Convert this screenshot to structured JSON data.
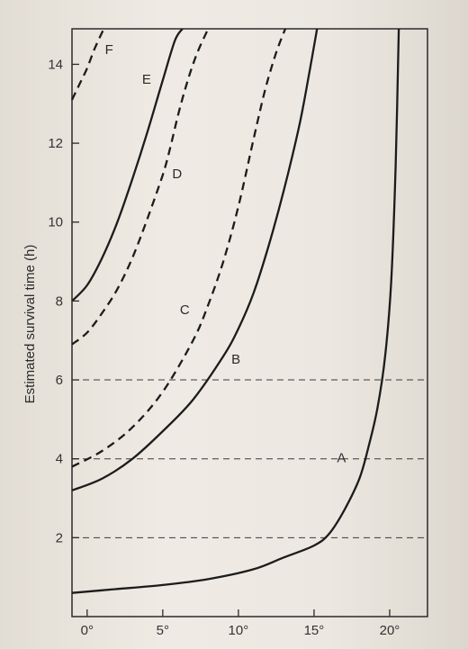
{
  "chart_data": {
    "type": "line",
    "title": "",
    "xlabel": "",
    "ylabel": "Estimated survival time (h)",
    "xlim": [
      -1,
      22.5
    ],
    "ylim": [
      0,
      14.9
    ],
    "x_ticks": [
      {
        "value": 0,
        "label": "0°"
      },
      {
        "value": 5,
        "label": "5°"
      },
      {
        "value": 10,
        "label": "10°"
      },
      {
        "value": 15,
        "label": "15°"
      },
      {
        "value": 20,
        "label": "20°"
      }
    ],
    "y_ticks": [
      {
        "value": 2,
        "label": "2"
      },
      {
        "value": 4,
        "label": "4"
      },
      {
        "value": 6,
        "label": "6"
      },
      {
        "value": 8,
        "label": "8"
      },
      {
        "value": 10,
        "label": "10"
      },
      {
        "value": 12,
        "label": "12"
      },
      {
        "value": 14,
        "label": "14"
      }
    ],
    "reference_lines": [
      2,
      4,
      6
    ],
    "series": [
      {
        "name": "A",
        "style": "solid",
        "x": [
          -1,
          2,
          5,
          8,
          11,
          13,
          15,
          16,
          17,
          18,
          18.6,
          19.2,
          19.7,
          20.1,
          20.4,
          20.6
        ],
        "y": [
          0.6,
          0.7,
          0.8,
          0.95,
          1.2,
          1.5,
          1.8,
          2.1,
          2.7,
          3.5,
          4.3,
          5.3,
          6.6,
          8.5,
          11.5,
          14.9
        ]
      },
      {
        "name": "B",
        "style": "solid",
        "x": [
          -1,
          1,
          3,
          5,
          7,
          9,
          10,
          11,
          12,
          13,
          14,
          14.6,
          15.2
        ],
        "y": [
          3.2,
          3.5,
          4.0,
          4.7,
          5.5,
          6.6,
          7.3,
          8.2,
          9.4,
          10.8,
          12.4,
          13.6,
          14.9
        ]
      },
      {
        "name": "C",
        "style": "dashed",
        "x": [
          -1,
          1,
          3,
          5,
          7,
          8,
          9,
          10,
          11,
          11.8,
          12.5,
          13.1
        ],
        "y": [
          3.8,
          4.2,
          4.8,
          5.7,
          7.0,
          7.9,
          9.0,
          10.4,
          12.1,
          13.4,
          14.3,
          14.9
        ]
      },
      {
        "name": "D",
        "style": "dashed",
        "x": [
          -1,
          0,
          1,
          2,
          3,
          4,
          5,
          5.5,
          6,
          6.5,
          7,
          7.4,
          8
        ],
        "y": [
          6.9,
          7.2,
          7.7,
          8.3,
          9.1,
          10.1,
          11.2,
          11.9,
          12.7,
          13.4,
          14.0,
          14.4,
          14.9
        ]
      },
      {
        "name": "E",
        "style": "solid",
        "x": [
          -1,
          0,
          1,
          2,
          3,
          4,
          5,
          5.8,
          6.3
        ],
        "y": [
          8.0,
          8.4,
          9.1,
          10.0,
          11.1,
          12.3,
          13.6,
          14.6,
          14.9
        ]
      },
      {
        "name": "F",
        "style": "dashed",
        "x": [
          -1,
          -0.5,
          0,
          0.5,
          1.1
        ],
        "y": [
          13.1,
          13.5,
          13.9,
          14.4,
          14.9
        ]
      }
    ],
    "grid": false,
    "legend": "none"
  }
}
